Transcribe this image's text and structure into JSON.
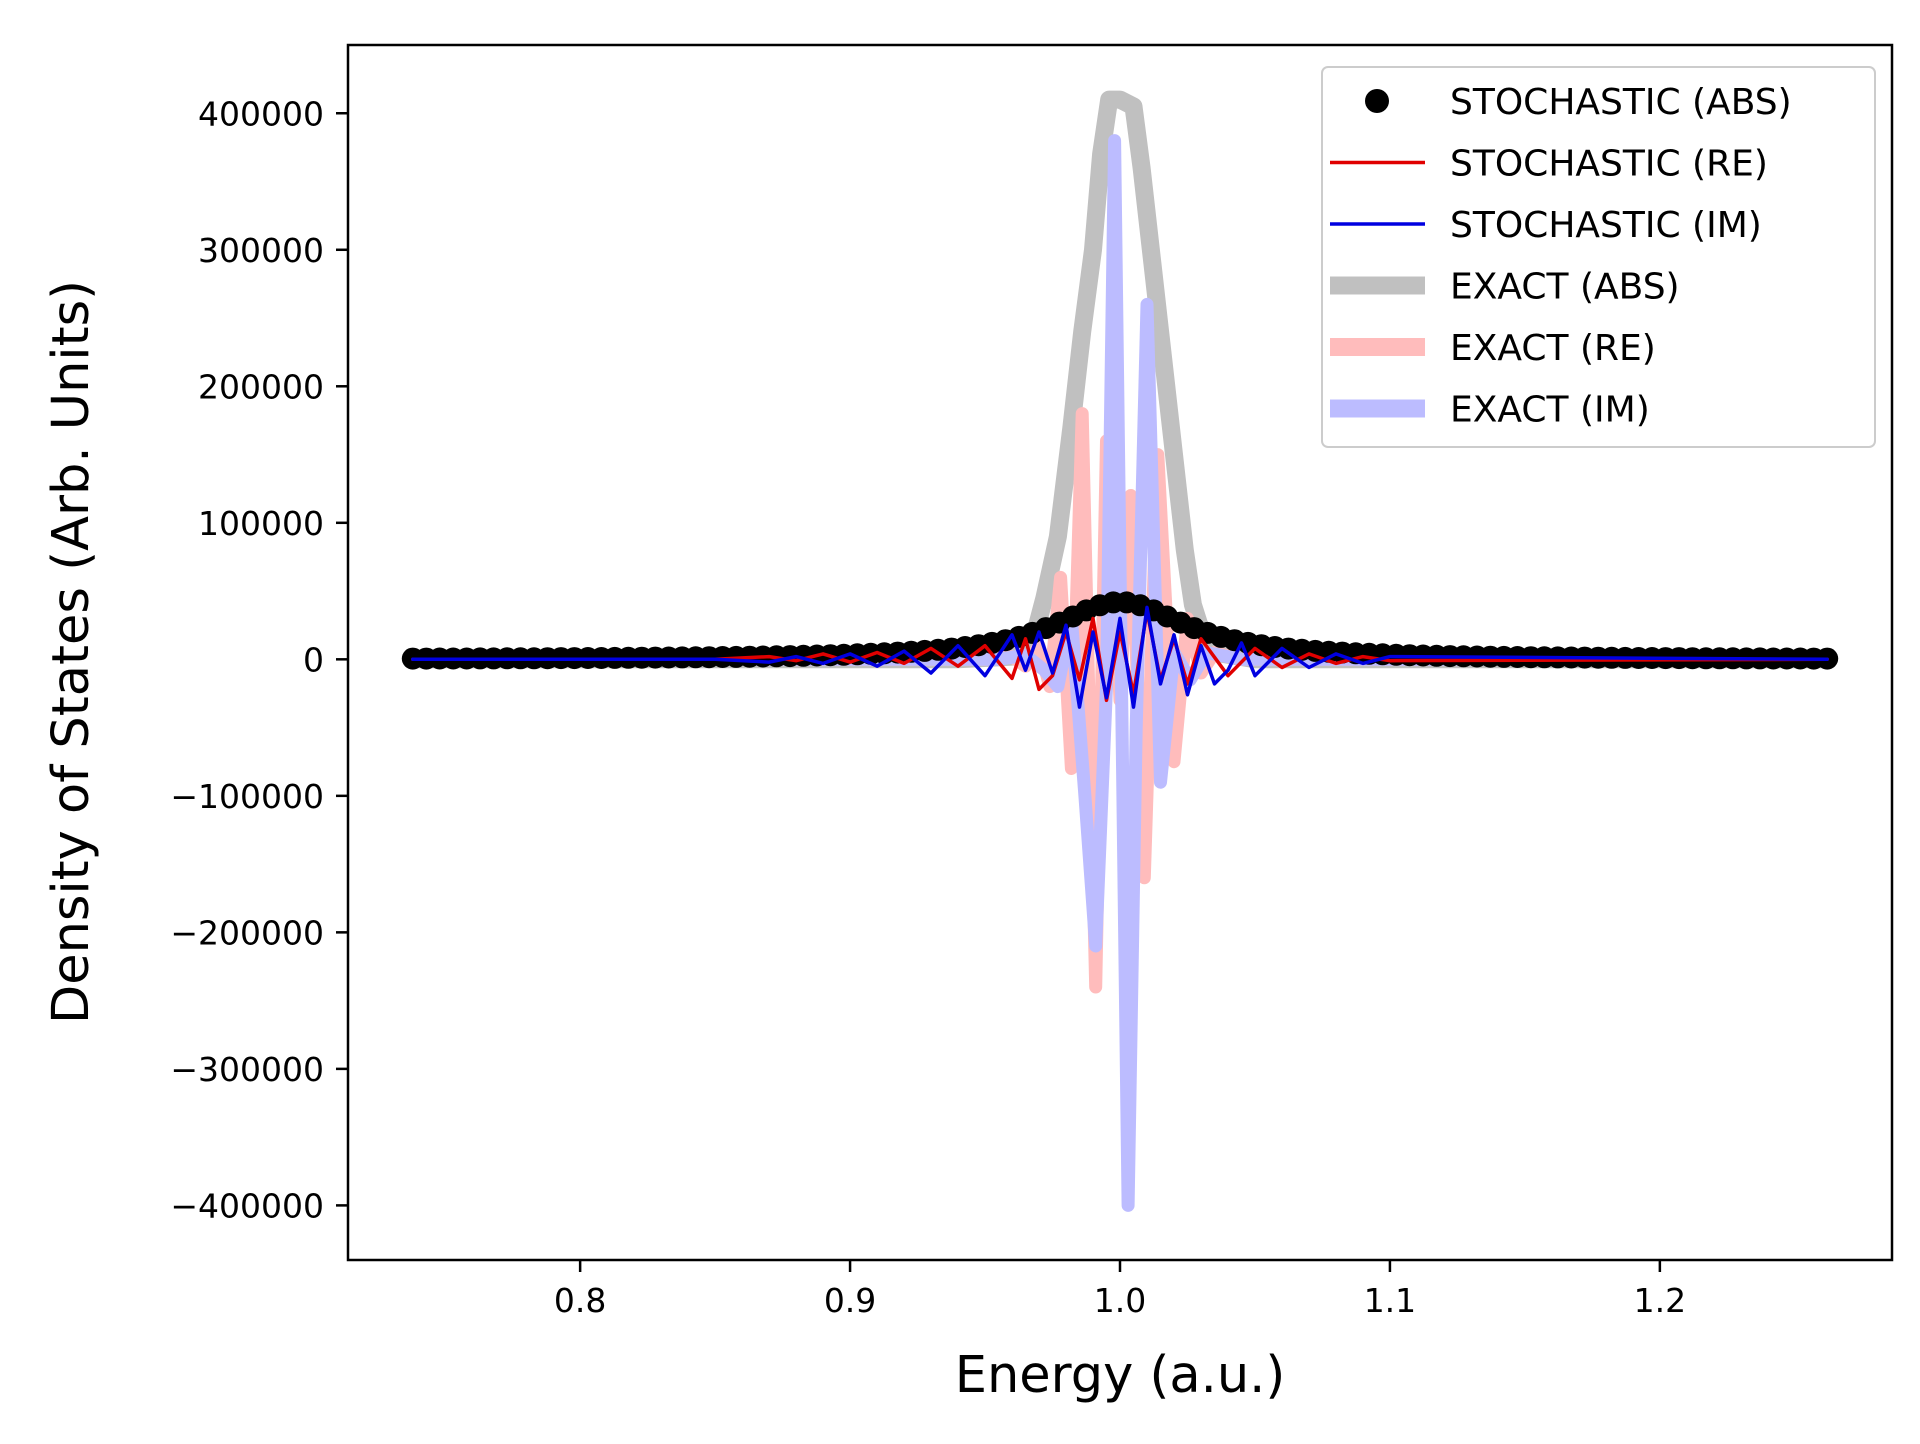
{
  "chart_data": {
    "type": "line",
    "title": "",
    "xlabel": "Energy (a.u.)",
    "ylabel": "Density of States (Arb. Units)",
    "xlim": [
      0.714,
      1.286
    ],
    "ylim": [
      -440000,
      450000
    ],
    "xticks": [
      0.8,
      0.9,
      1.0,
      1.1,
      1.2
    ],
    "xtick_labels": [
      "0.8",
      "0.9",
      "1.0",
      "1.1",
      "1.2"
    ],
    "yticks": [
      400000,
      300000,
      200000,
      100000,
      0,
      -100000,
      -200000,
      -300000,
      -400000
    ],
    "ytick_labels": [
      "400000",
      "300000",
      "200000",
      "100000",
      "0",
      "−100000",
      "−200000",
      "−300000",
      "−400000"
    ],
    "grid": false,
    "legend_position": "top-right",
    "series": [
      {
        "name": "EXACT (ABS)",
        "style": "line",
        "color": "#c0c0c0",
        "width": 18,
        "points": [
          [
            0.738,
            0
          ],
          [
            0.85,
            0
          ],
          [
            0.94,
            0
          ],
          [
            0.96,
            2000
          ],
          [
            0.968,
            15000
          ],
          [
            0.972,
            45000
          ],
          [
            0.977,
            90000
          ],
          [
            0.982,
            170000
          ],
          [
            0.986,
            240000
          ],
          [
            0.99,
            300000
          ],
          [
            0.993,
            370000
          ],
          [
            0.996,
            410000
          ],
          [
            1.0,
            410000
          ],
          [
            1.005,
            405000
          ],
          [
            1.008,
            360000
          ],
          [
            1.012,
            290000
          ],
          [
            1.016,
            220000
          ],
          [
            1.02,
            150000
          ],
          [
            1.024,
            80000
          ],
          [
            1.027,
            40000
          ],
          [
            1.031,
            15000
          ],
          [
            1.035,
            5000
          ],
          [
            1.05,
            0
          ],
          [
            1.15,
            0
          ],
          [
            1.262,
            0
          ]
        ]
      },
      {
        "name": "EXACT (RE)",
        "style": "line",
        "color": "#ffbcbc",
        "width": 13,
        "points": [
          [
            0.738,
            0
          ],
          [
            0.9,
            0
          ],
          [
            0.95,
            0
          ],
          [
            0.96,
            2000
          ],
          [
            0.965,
            -5000
          ],
          [
            0.97,
            10000
          ],
          [
            0.974,
            -20000
          ],
          [
            0.978,
            60000
          ],
          [
            0.982,
            -80000
          ],
          [
            0.986,
            180000
          ],
          [
            0.991,
            -240000
          ],
          [
            0.995,
            160000
          ],
          [
            1.0,
            -30000
          ],
          [
            1.004,
            120000
          ],
          [
            1.009,
            -160000
          ],
          [
            1.014,
            150000
          ],
          [
            1.02,
            -75000
          ],
          [
            1.025,
            30000
          ],
          [
            1.03,
            -10000
          ],
          [
            1.035,
            5000
          ],
          [
            1.045,
            0
          ],
          [
            1.1,
            0
          ],
          [
            1.262,
            0
          ]
        ]
      },
      {
        "name": "EXACT (IM)",
        "style": "line",
        "color": "#bcbcff",
        "width": 13,
        "points": [
          [
            0.738,
            0
          ],
          [
            0.9,
            0
          ],
          [
            0.955,
            0
          ],
          [
            0.965,
            3000
          ],
          [
            0.972,
            -8000
          ],
          [
            0.977,
            -20000
          ],
          [
            0.982,
            30000
          ],
          [
            0.987,
            -100000
          ],
          [
            0.991,
            -210000
          ],
          [
            0.995,
            -20000
          ],
          [
            0.998,
            380000
          ],
          [
            1.003,
            -400000
          ],
          [
            1.006,
            -50000
          ],
          [
            1.01,
            260000
          ],
          [
            1.015,
            -90000
          ],
          [
            1.02,
            5000
          ],
          [
            1.026,
            -15000
          ],
          [
            1.032,
            5000
          ],
          [
            1.045,
            0
          ],
          [
            1.1,
            0
          ],
          [
            1.262,
            0
          ]
        ]
      },
      {
        "name": "STOCHASTIC (ABS)",
        "style": "scatter",
        "color": "#000000",
        "radius": 11,
        "x_start": 0.738,
        "x_end": 1.262,
        "count": 106,
        "peak_center": 1.0,
        "peak_height": 42000,
        "peak_width": 0.03
      },
      {
        "name": "STOCHASTIC (RE)",
        "style": "line",
        "color": "#e00000",
        "width": 3.5,
        "points": [
          [
            0.738,
            0
          ],
          [
            0.85,
            0
          ],
          [
            0.87,
            2000
          ],
          [
            0.88,
            -1000
          ],
          [
            0.89,
            4000
          ],
          [
            0.9,
            -2000
          ],
          [
            0.91,
            5000
          ],
          [
            0.92,
            -3000
          ],
          [
            0.93,
            8000
          ],
          [
            0.94,
            -5000
          ],
          [
            0.95,
            10000
          ],
          [
            0.96,
            -14000
          ],
          [
            0.965,
            15000
          ],
          [
            0.97,
            -22000
          ],
          [
            0.975,
            -12000
          ],
          [
            0.98,
            20000
          ],
          [
            0.985,
            -15000
          ],
          [
            0.99,
            30000
          ],
          [
            0.995,
            -30000
          ],
          [
            1.0,
            20000
          ],
          [
            1.005,
            -25000
          ],
          [
            1.01,
            35000
          ],
          [
            1.015,
            -15000
          ],
          [
            1.02,
            15000
          ],
          [
            1.025,
            -18000
          ],
          [
            1.03,
            15000
          ],
          [
            1.04,
            -12000
          ],
          [
            1.05,
            8000
          ],
          [
            1.06,
            -6000
          ],
          [
            1.07,
            4000
          ],
          [
            1.08,
            -3000
          ],
          [
            1.09,
            2000
          ],
          [
            1.1,
            -1000
          ],
          [
            1.262,
            0
          ]
        ]
      },
      {
        "name": "STOCHASTIC (IM)",
        "style": "line",
        "color": "#0000e0",
        "width": 3.5,
        "points": [
          [
            0.738,
            0
          ],
          [
            0.85,
            0
          ],
          [
            0.87,
            -2000
          ],
          [
            0.88,
            2000
          ],
          [
            0.89,
            -3000
          ],
          [
            0.9,
            4000
          ],
          [
            0.91,
            -5000
          ],
          [
            0.92,
            6000
          ],
          [
            0.93,
            -10000
          ],
          [
            0.94,
            10000
          ],
          [
            0.95,
            -12000
          ],
          [
            0.96,
            18000
          ],
          [
            0.965,
            -8000
          ],
          [
            0.97,
            20000
          ],
          [
            0.975,
            -10000
          ],
          [
            0.98,
            25000
          ],
          [
            0.985,
            -35000
          ],
          [
            0.99,
            20000
          ],
          [
            0.995,
            -28000
          ],
          [
            1.0,
            30000
          ],
          [
            1.005,
            -35000
          ],
          [
            1.01,
            38000
          ],
          [
            1.015,
            -18000
          ],
          [
            1.02,
            18000
          ],
          [
            1.025,
            -26000
          ],
          [
            1.03,
            10000
          ],
          [
            1.035,
            -18000
          ],
          [
            1.04,
            -8000
          ],
          [
            1.045,
            12000
          ],
          [
            1.05,
            -12000
          ],
          [
            1.06,
            8000
          ],
          [
            1.07,
            -6000
          ],
          [
            1.08,
            4000
          ],
          [
            1.09,
            -3000
          ],
          [
            1.1,
            2000
          ],
          [
            1.262,
            0
          ]
        ]
      }
    ],
    "legend": [
      {
        "label": "STOCHASTIC (ABS)",
        "marker": "dot",
        "color": "#000000"
      },
      {
        "label": "STOCHASTIC (RE)",
        "marker": "line",
        "color": "#e00000"
      },
      {
        "label": "STOCHASTIC (IM)",
        "marker": "line",
        "color": "#0000e0"
      },
      {
        "label": "EXACT (ABS)",
        "marker": "thickline",
        "color": "#c0c0c0"
      },
      {
        "label": "EXACT (RE)",
        "marker": "thickline",
        "color": "#ffbcbc"
      },
      {
        "label": "EXACT (IM)",
        "marker": "thickline",
        "color": "#bcbcff"
      }
    ]
  }
}
